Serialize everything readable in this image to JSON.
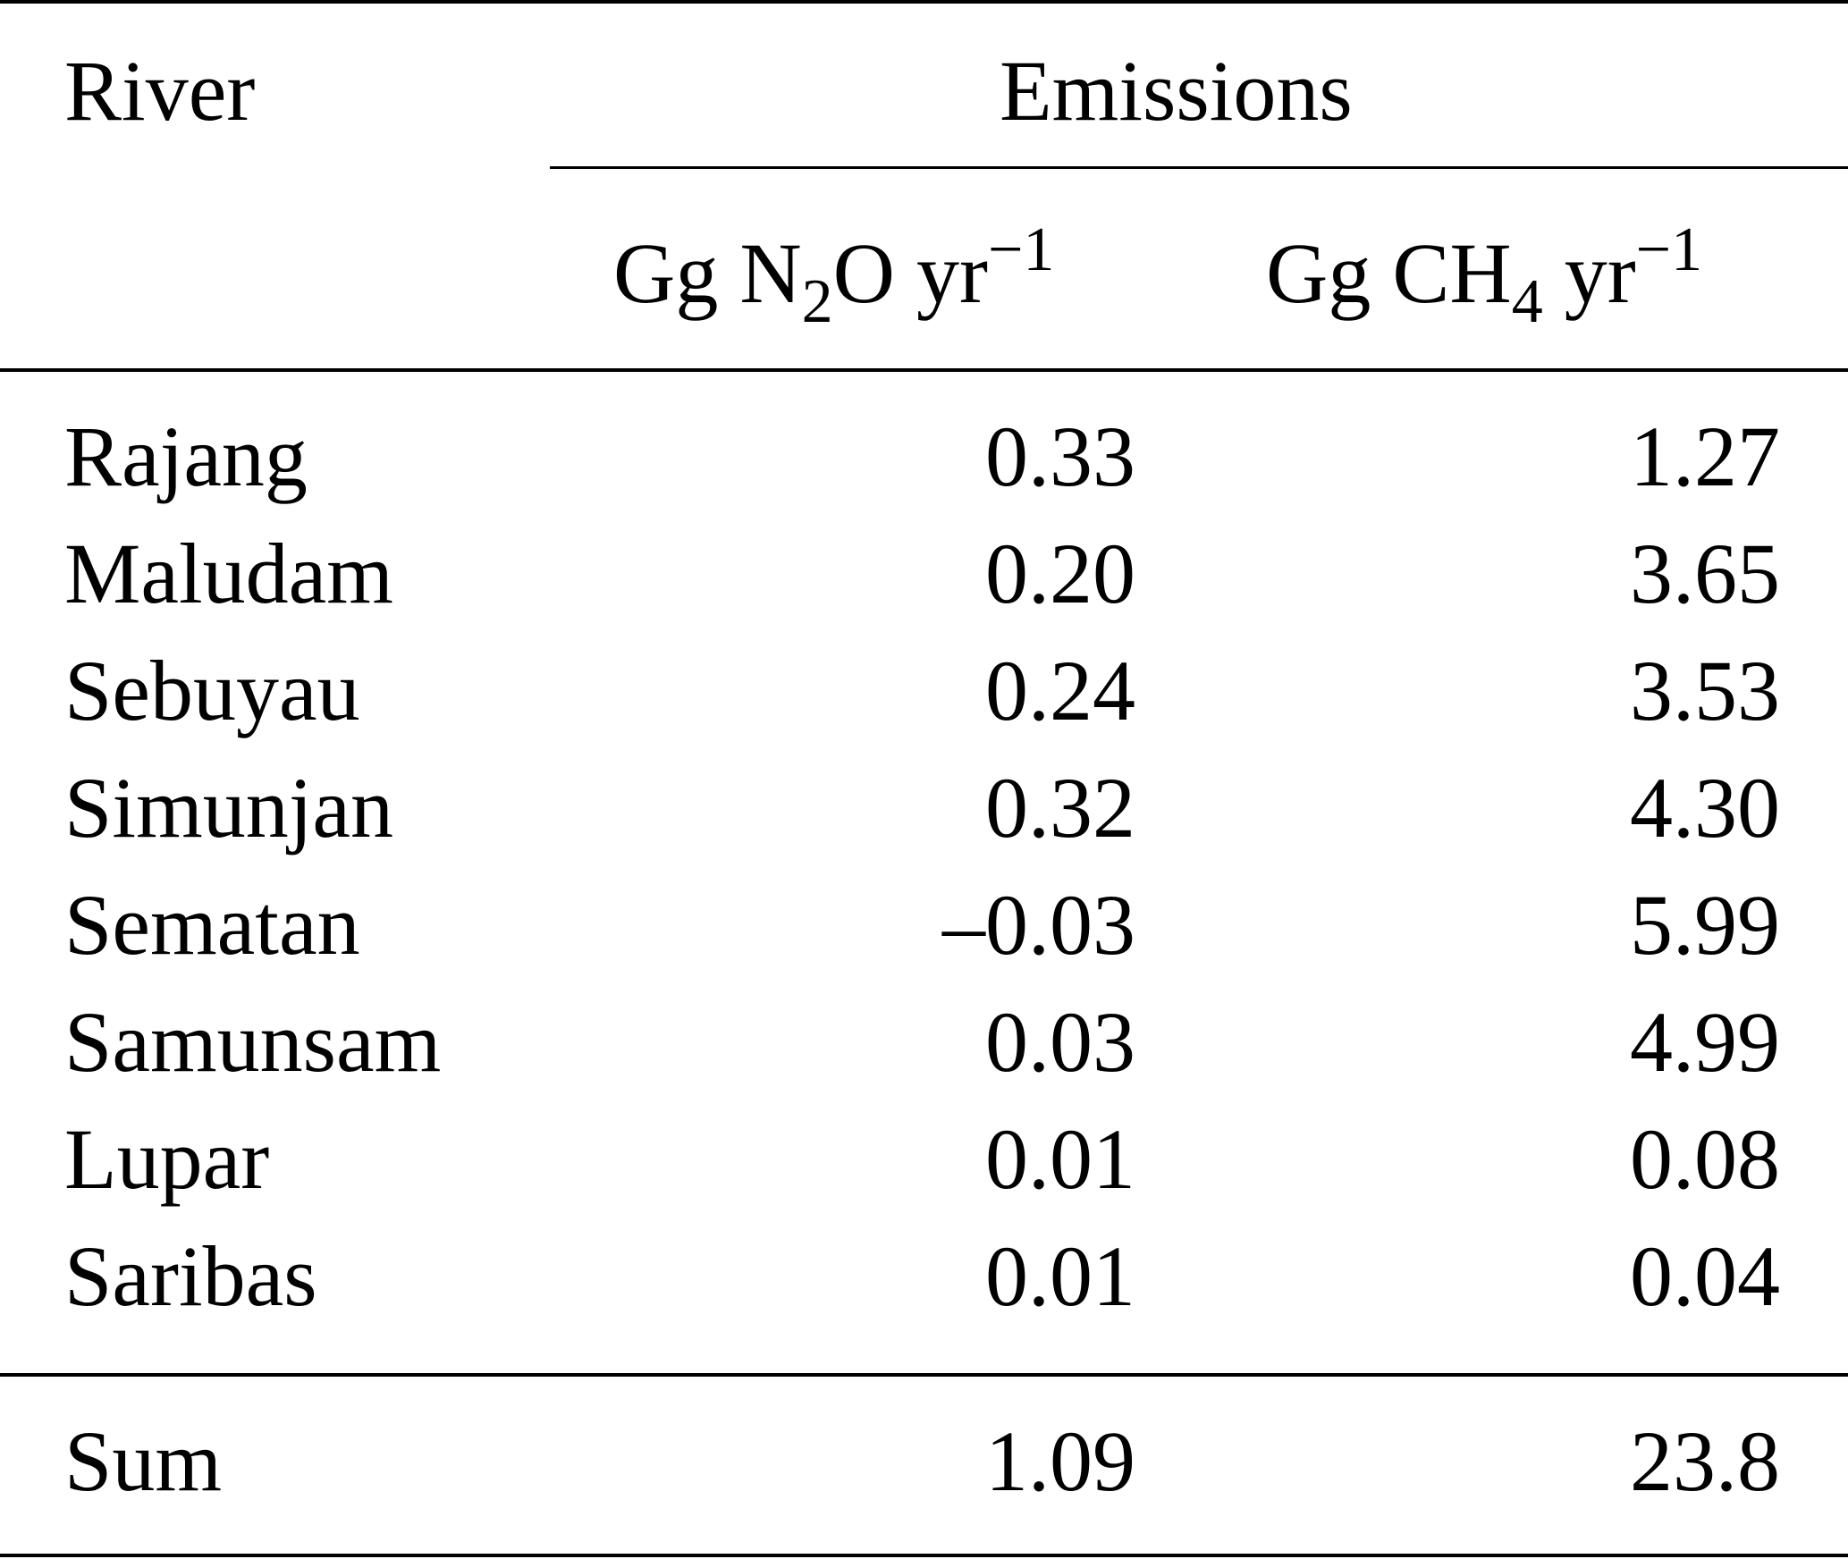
{
  "header": {
    "river_label": "River",
    "emissions_label": "Emissions",
    "col1_unit": {
      "pre": "Gg N",
      "sub": "2",
      "mid": "O yr",
      "sup": "−1"
    },
    "col2_unit": {
      "pre": "Gg CH",
      "sub": "4",
      "mid": " yr",
      "sup": "−1"
    }
  },
  "rows": [
    {
      "river": "Rajang",
      "n2o": "0.33",
      "ch4": "1.27"
    },
    {
      "river": "Maludam",
      "n2o": "0.20",
      "ch4": "3.65"
    },
    {
      "river": "Sebuyau",
      "n2o": "0.24",
      "ch4": "3.53"
    },
    {
      "river": "Simunjan",
      "n2o": "0.32",
      "ch4": "4.30"
    },
    {
      "river": "Sematan",
      "n2o": "–0.03",
      "ch4": "5.99"
    },
    {
      "river": "Samunsam",
      "n2o": "0.03",
      "ch4": "4.99"
    },
    {
      "river": "Lupar",
      "n2o": "0.01",
      "ch4": "0.08"
    },
    {
      "river": "Saribas",
      "n2o": "0.01",
      "ch4": "0.04"
    }
  ],
  "sum": {
    "label": "Sum",
    "n2o": "1.09",
    "ch4": "23.8"
  }
}
